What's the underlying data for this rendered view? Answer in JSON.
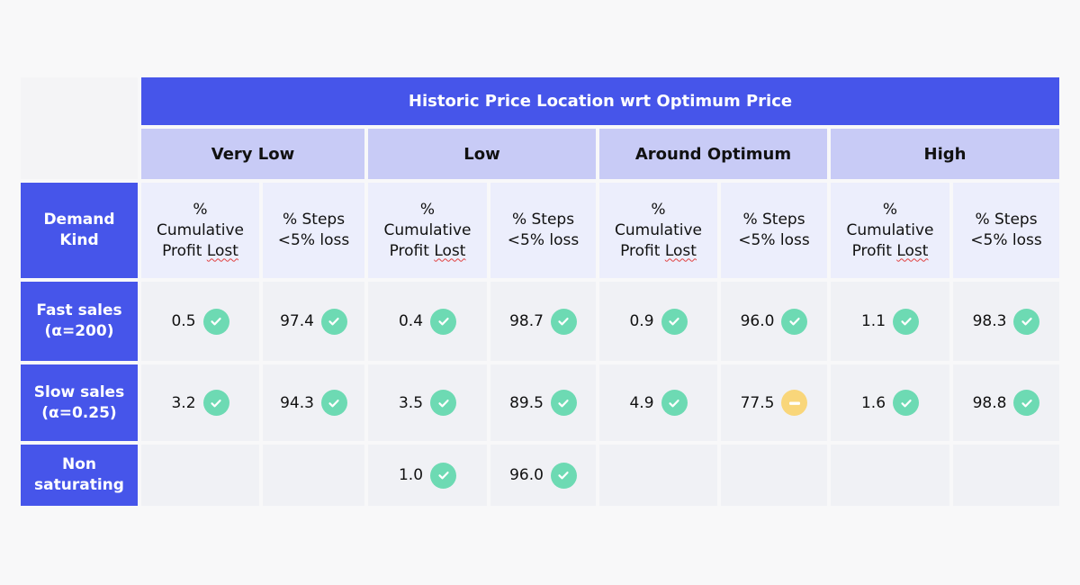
{
  "table": {
    "title": "Historic Price Location wrt Optimum Price",
    "row_header_label": "Demand Kind",
    "groups": [
      {
        "label": "Very Low"
      },
      {
        "label": "Low"
      },
      {
        "label": "Around Optimum"
      },
      {
        "label": "High"
      }
    ],
    "sub_headers": {
      "profit_prefix": "%",
      "profit_line2": "Cumulative",
      "profit_line3a": "Profit ",
      "profit_line3b": "Lost",
      "steps_line1": "% Steps",
      "steps_line2": "<5% loss"
    },
    "rows": [
      {
        "label_line1": "Fast sales",
        "label_line2": "(α=200)",
        "cells": [
          {
            "value": "0.5",
            "status": "ok"
          },
          {
            "value": "97.4",
            "status": "ok"
          },
          {
            "value": "0.4",
            "status": "ok"
          },
          {
            "value": "98.7",
            "status": "ok"
          },
          {
            "value": "0.9",
            "status": "ok"
          },
          {
            "value": "96.0",
            "status": "ok"
          },
          {
            "value": "1.1",
            "status": "ok"
          },
          {
            "value": "98.3",
            "status": "ok"
          }
        ]
      },
      {
        "label_line1": "Slow sales",
        "label_line2": "(α=0.25)",
        "cells": [
          {
            "value": "3.2",
            "status": "ok"
          },
          {
            "value": "94.3",
            "status": "ok"
          },
          {
            "value": "3.5",
            "status": "ok"
          },
          {
            "value": "89.5",
            "status": "ok"
          },
          {
            "value": "4.9",
            "status": "ok"
          },
          {
            "value": "77.5",
            "status": "warn"
          },
          {
            "value": "1.6",
            "status": "ok"
          },
          {
            "value": "98.8",
            "status": "ok"
          }
        ]
      },
      {
        "label_line1": "Non",
        "label_line2": "saturating",
        "cells": [
          {
            "value": "",
            "status": ""
          },
          {
            "value": "",
            "status": ""
          },
          {
            "value": "1.0",
            "status": "ok"
          },
          {
            "value": "96.0",
            "status": "ok"
          },
          {
            "value": "",
            "status": ""
          },
          {
            "value": "",
            "status": ""
          },
          {
            "value": "",
            "status": ""
          },
          {
            "value": "",
            "status": ""
          }
        ]
      }
    ],
    "status_icons": {
      "ok": "check-circle-icon",
      "warn": "minus-circle-icon"
    },
    "colors": {
      "header_blue": "#4655ea",
      "group_lavender": "#c8cbf6",
      "ok_green": "#6ddab3",
      "warn_yellow": "#f9d67a"
    }
  }
}
